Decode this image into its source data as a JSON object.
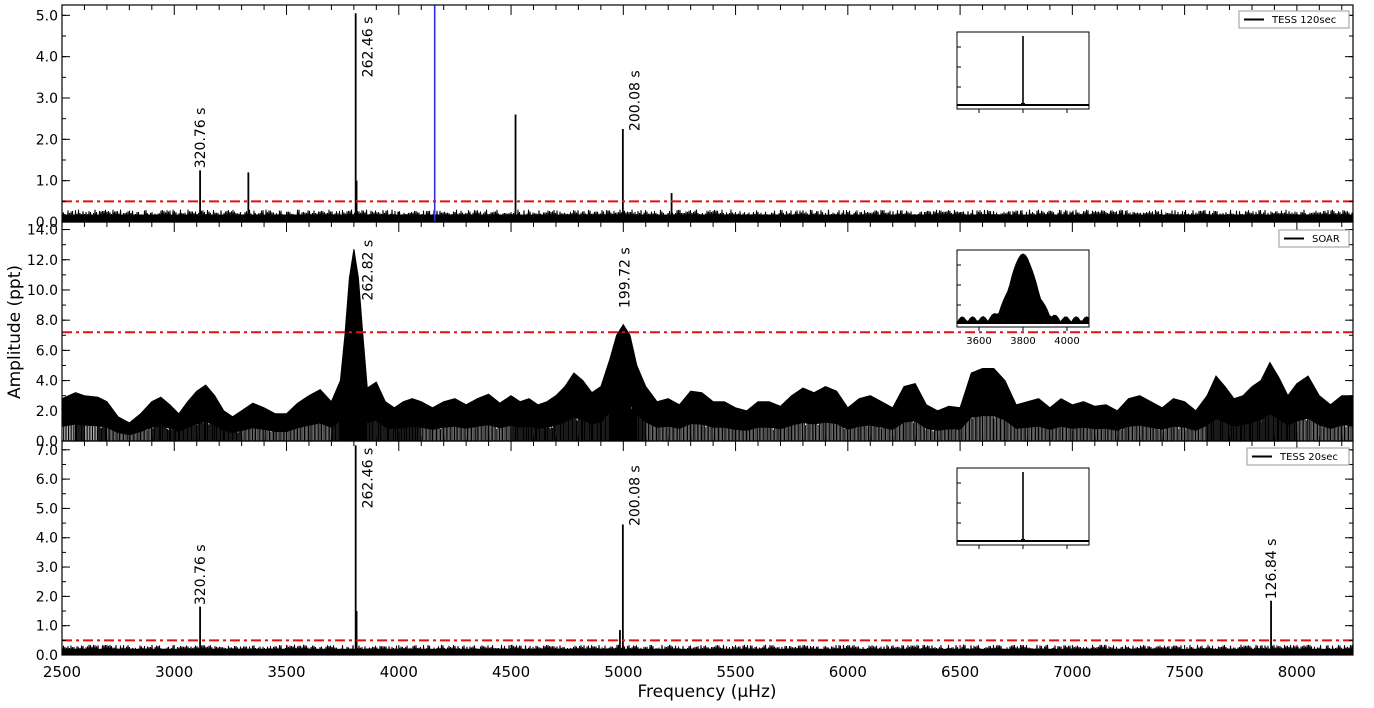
{
  "chart_data": {
    "type": "line",
    "xlabel": "Frequency (μHz)",
    "ylabel": "Amplitude (ppt)",
    "xlim": [
      2500,
      8250
    ],
    "xticks": [
      "2500",
      "3000",
      "3500",
      "4000",
      "4500",
      "5000",
      "5500",
      "6000",
      "6500",
      "7000",
      "7500",
      "8000"
    ],
    "panels": [
      {
        "id": "tess120",
        "legend": "TESS 120sec",
        "ylim": [
          0,
          5.25
        ],
        "yticks": [
          "0.0",
          "1.0",
          "2.0",
          "3.0",
          "4.0",
          "5.0"
        ],
        "noise_level": 0.3,
        "threshold": 0.5,
        "vline": 4160,
        "peaks": [
          {
            "x": 3115,
            "y": 1.25
          },
          {
            "x": 3330,
            "y": 1.2
          },
          {
            "x": 3808,
            "y": 5.05
          },
          {
            "x": 3812,
            "y": 1.0
          },
          {
            "x": 4520,
            "y": 2.6
          },
          {
            "x": 4998,
            "y": 2.25
          },
          {
            "x": 5215,
            "y": 0.7
          }
        ],
        "annotations": [
          {
            "x": 3115,
            "y": 1.3,
            "text": "320.76 s"
          },
          {
            "x": 3860,
            "y": 3.5,
            "text": "262.46 s"
          },
          {
            "x": 5050,
            "y": 2.2,
            "text": "200.08 s"
          }
        ],
        "inset": {
          "shape": "spike"
        }
      },
      {
        "id": "soar",
        "legend": "SOAR",
        "ylim": [
          0,
          14.5
        ],
        "yticks": [
          "0.0",
          "2.0",
          "4.0",
          "6.0",
          "8.0",
          "10.0",
          "12.0",
          "14.0"
        ],
        "threshold": 7.2,
        "envelope": [
          [
            2500,
            2.8
          ],
          [
            2560,
            3.2
          ],
          [
            2600,
            3.0
          ],
          [
            2660,
            2.9
          ],
          [
            2700,
            2.6
          ],
          [
            2750,
            1.6
          ],
          [
            2800,
            1.2
          ],
          [
            2850,
            1.8
          ],
          [
            2900,
            2.6
          ],
          [
            2940,
            2.9
          ],
          [
            2980,
            2.4
          ],
          [
            3020,
            1.8
          ],
          [
            3060,
            2.6
          ],
          [
            3100,
            3.3
          ],
          [
            3140,
            3.7
          ],
          [
            3180,
            3.0
          ],
          [
            3220,
            2.0
          ],
          [
            3260,
            1.6
          ],
          [
            3300,
            2.0
          ],
          [
            3350,
            2.5
          ],
          [
            3400,
            2.2
          ],
          [
            3450,
            1.8
          ],
          [
            3500,
            1.8
          ],
          [
            3550,
            2.5
          ],
          [
            3600,
            3.0
          ],
          [
            3650,
            3.4
          ],
          [
            3700,
            2.6
          ],
          [
            3740,
            4.0
          ],
          [
            3760,
            7.0
          ],
          [
            3780,
            10.8
          ],
          [
            3800,
            12.7
          ],
          [
            3820,
            10.8
          ],
          [
            3840,
            7.0
          ],
          [
            3860,
            3.5
          ],
          [
            3900,
            3.9
          ],
          [
            3940,
            2.6
          ],
          [
            3980,
            2.2
          ],
          [
            4020,
            2.6
          ],
          [
            4060,
            2.8
          ],
          [
            4100,
            2.6
          ],
          [
            4150,
            2.2
          ],
          [
            4200,
            2.6
          ],
          [
            4250,
            2.8
          ],
          [
            4300,
            2.4
          ],
          [
            4350,
            2.8
          ],
          [
            4400,
            3.1
          ],
          [
            4450,
            2.5
          ],
          [
            4500,
            3.0
          ],
          [
            4540,
            2.6
          ],
          [
            4580,
            2.8
          ],
          [
            4620,
            2.4
          ],
          [
            4660,
            2.6
          ],
          [
            4700,
            3.0
          ],
          [
            4740,
            3.6
          ],
          [
            4780,
            4.5
          ],
          [
            4820,
            4.0
          ],
          [
            4860,
            3.2
          ],
          [
            4900,
            3.6
          ],
          [
            4940,
            5.4
          ],
          [
            4970,
            7.0
          ],
          [
            5000,
            7.7
          ],
          [
            5030,
            7.0
          ],
          [
            5060,
            5.0
          ],
          [
            5100,
            3.6
          ],
          [
            5150,
            2.6
          ],
          [
            5200,
            2.8
          ],
          [
            5250,
            2.4
          ],
          [
            5300,
            3.3
          ],
          [
            5350,
            3.2
          ],
          [
            5400,
            2.6
          ],
          [
            5450,
            2.6
          ],
          [
            5500,
            2.2
          ],
          [
            5550,
            2.0
          ],
          [
            5600,
            2.6
          ],
          [
            5650,
            2.6
          ],
          [
            5700,
            2.3
          ],
          [
            5750,
            3.0
          ],
          [
            5800,
            3.5
          ],
          [
            5850,
            3.2
          ],
          [
            5900,
            3.6
          ],
          [
            5950,
            3.3
          ],
          [
            6000,
            2.2
          ],
          [
            6050,
            2.8
          ],
          [
            6100,
            3.0
          ],
          [
            6150,
            2.6
          ],
          [
            6200,
            2.2
          ],
          [
            6250,
            3.6
          ],
          [
            6300,
            3.8
          ],
          [
            6350,
            2.4
          ],
          [
            6400,
            2.0
          ],
          [
            6450,
            2.3
          ],
          [
            6500,
            2.2
          ],
          [
            6550,
            4.5
          ],
          [
            6600,
            4.8
          ],
          [
            6650,
            4.8
          ],
          [
            6700,
            4.0
          ],
          [
            6750,
            2.4
          ],
          [
            6800,
            2.6
          ],
          [
            6850,
            2.8
          ],
          [
            6900,
            2.2
          ],
          [
            6950,
            2.8
          ],
          [
            7000,
            2.4
          ],
          [
            7050,
            2.6
          ],
          [
            7100,
            2.3
          ],
          [
            7150,
            2.4
          ],
          [
            7200,
            2.0
          ],
          [
            7250,
            2.8
          ],
          [
            7300,
            3.0
          ],
          [
            7350,
            2.6
          ],
          [
            7400,
            2.2
          ],
          [
            7450,
            2.8
          ],
          [
            7500,
            2.6
          ],
          [
            7550,
            2.0
          ],
          [
            7600,
            3.0
          ],
          [
            7640,
            4.3
          ],
          [
            7680,
            3.6
          ],
          [
            7720,
            2.8
          ],
          [
            7760,
            3.0
          ],
          [
            7800,
            3.6
          ],
          [
            7840,
            4.0
          ],
          [
            7880,
            5.2
          ],
          [
            7920,
            4.2
          ],
          [
            7960,
            3.0
          ],
          [
            8000,
            3.8
          ],
          [
            8050,
            4.3
          ],
          [
            8100,
            3.0
          ],
          [
            8150,
            2.4
          ],
          [
            8200,
            3.0
          ],
          [
            8250,
            3.0
          ]
        ],
        "annotations": [
          {
            "x": 3860,
            "y": 9.3,
            "text": "262.82 s"
          },
          {
            "x": 5005,
            "y": 8.8,
            "text": "199.72 s"
          }
        ],
        "inset": {
          "shape": "envelope",
          "xticks": [
            "3600",
            "3800",
            "4000"
          ]
        }
      },
      {
        "id": "tess20",
        "legend": "TESS 20sec",
        "ylim": [
          0,
          7.3
        ],
        "yticks": [
          "0.0",
          "1.0",
          "2.0",
          "3.0",
          "4.0",
          "5.0",
          "6.0",
          "7.0"
        ],
        "noise_level": 0.35,
        "threshold": 0.5,
        "peaks": [
          {
            "x": 3115,
            "y": 1.65
          },
          {
            "x": 3808,
            "y": 7.15
          },
          {
            "x": 3812,
            "y": 1.5
          },
          {
            "x": 4985,
            "y": 0.85
          },
          {
            "x": 4998,
            "y": 4.45
          },
          {
            "x": 7885,
            "y": 1.85
          }
        ],
        "annotations": [
          {
            "x": 3115,
            "y": 1.7,
            "text": "320.76 s"
          },
          {
            "x": 3860,
            "y": 5.0,
            "text": "262.46 s"
          },
          {
            "x": 5050,
            "y": 4.4,
            "text": "200.08 s"
          },
          {
            "x": 7885,
            "y": 1.9,
            "text": "126.84 s"
          }
        ],
        "inset": {
          "shape": "spike"
        }
      }
    ]
  }
}
